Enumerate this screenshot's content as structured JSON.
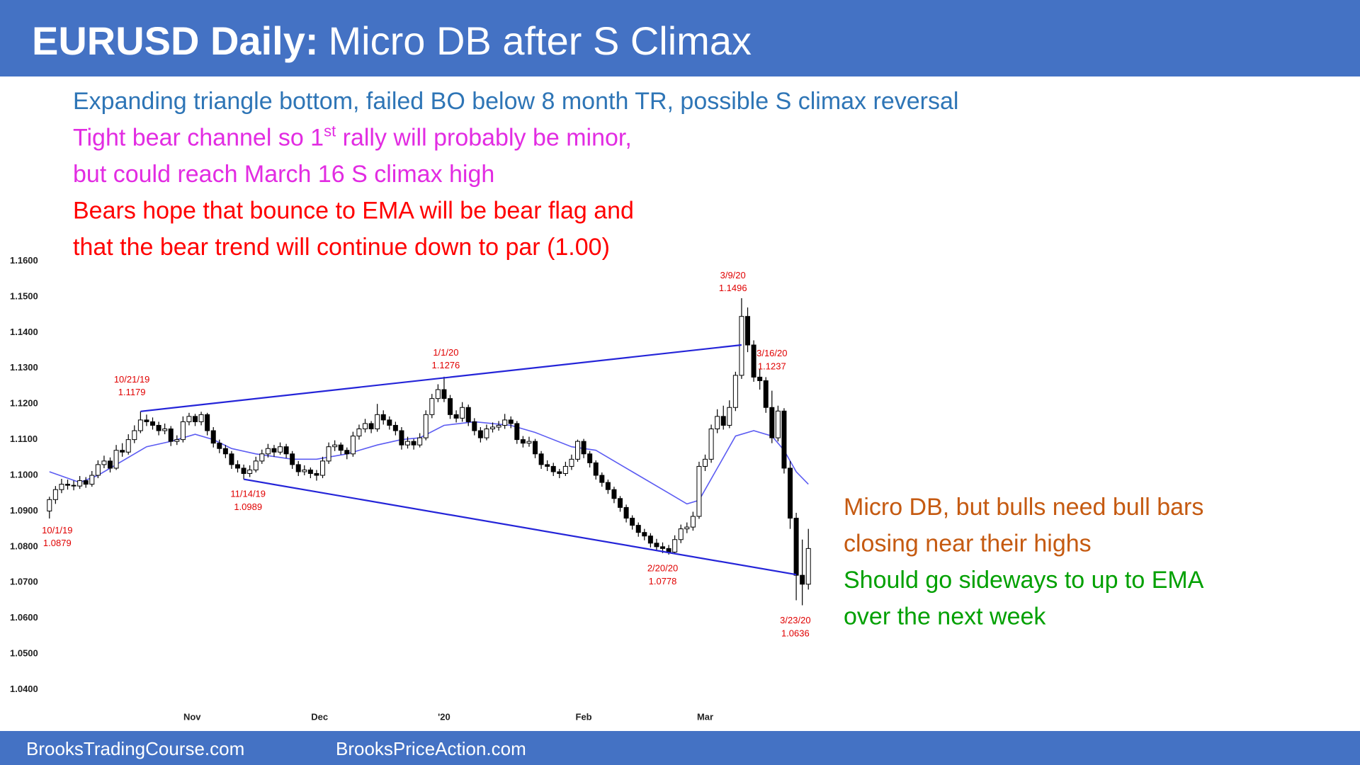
{
  "header": {
    "title_bold": "EURUSD Daily:",
    "title_rest": "Micro DB after S Climax"
  },
  "notes": [
    {
      "color": "#2E75B6",
      "runs": [
        "Expanding triangle bottom, failed BO below 8 month TR, possible S climax reversal"
      ]
    },
    {
      "color": "#E22CE2",
      "runs": [
        "Tight bear channel so 1",
        "st",
        " rally will probably be minor,"
      ]
    },
    {
      "color": "#E22CE2",
      "runs": [
        "but could reach March 16 S climax high"
      ]
    },
    {
      "color": "#FF0000",
      "runs": [
        "Bears hope that bounce to EMA will be bear flag and"
      ]
    },
    {
      "color": "#FF0000",
      "runs": [
        "that the bear trend will continue down to par (1.00)"
      ]
    }
  ],
  "commentary": [
    {
      "color": "#C55A11",
      "text": "Micro DB, but bulls need bull bars"
    },
    {
      "color": "#C55A11",
      "text": "closing near their highs"
    },
    {
      "color": "#00A000",
      "text": "Should go sideways to up to EMA"
    },
    {
      "color": "#00A000",
      "text": "over the next week"
    }
  ],
  "footer": {
    "left": "BrooksTradingCourse.com",
    "right": "BrooksPriceAction.com"
  },
  "chart_data": {
    "type": "candlestick",
    "xlim": [
      0,
      125
    ],
    "ylim": [
      1.04,
      1.16
    ],
    "yticks": [
      {
        "value": 1.04,
        "label": "1.0400"
      },
      {
        "value": 1.05,
        "label": "1.0500"
      },
      {
        "value": 1.06,
        "label": "1.0600"
      },
      {
        "value": 1.07,
        "label": "1.0700"
      },
      {
        "value": 1.08,
        "label": "1.0800"
      },
      {
        "value": 1.09,
        "label": "1.0900"
      },
      {
        "value": 1.1,
        "label": "1.1000"
      },
      {
        "value": 1.11,
        "label": "1.1100"
      },
      {
        "value": 1.12,
        "label": "1.1200"
      },
      {
        "value": 1.13,
        "label": "1.1300"
      },
      {
        "value": 1.14,
        "label": "1.1400"
      },
      {
        "value": 1.15,
        "label": "1.1500"
      },
      {
        "value": 1.16,
        "label": "1.1600"
      }
    ],
    "xticks": [
      {
        "value": 23.5,
        "label": "Nov"
      },
      {
        "value": 44.5,
        "label": "Dec"
      },
      {
        "value": 65,
        "label": "'20"
      },
      {
        "value": 88,
        "label": "Feb"
      },
      {
        "value": 108,
        "label": "Mar"
      }
    ],
    "bull_color": "#ffffff",
    "bear_color": "#000000",
    "ohlc": [
      [
        1.09,
        1.094,
        1.0879,
        1.0932
      ],
      [
        1.0932,
        1.097,
        1.092,
        1.096
      ],
      [
        1.096,
        1.099,
        1.095,
        1.0975
      ],
      [
        1.0975,
        1.0988,
        1.096,
        1.0972
      ],
      [
        1.0972,
        1.0985,
        1.0958,
        1.097
      ],
      [
        1.097,
        1.0998,
        1.0962,
        1.0985
      ],
      [
        1.0985,
        1.0995,
        1.0965,
        1.0975
      ],
      [
        1.0975,
        1.1012,
        1.0968,
        1.1
      ],
      [
        1.1,
        1.1042,
        1.0992,
        1.103
      ],
      [
        1.103,
        1.1055,
        1.102,
        1.104
      ],
      [
        1.104,
        1.105,
        1.1008,
        1.102
      ],
      [
        1.102,
        1.1085,
        1.1015,
        1.107
      ],
      [
        1.107,
        1.109,
        1.1052,
        1.1065
      ],
      [
        1.1065,
        1.1115,
        1.1058,
        1.11
      ],
      [
        1.11,
        1.114,
        1.109,
        1.1125
      ],
      [
        1.1125,
        1.1179,
        1.1118,
        1.1155
      ],
      [
        1.1155,
        1.117,
        1.1138,
        1.115
      ],
      [
        1.115,
        1.1162,
        1.1128,
        1.114
      ],
      [
        1.114,
        1.115,
        1.1112,
        1.1125
      ],
      [
        1.1125,
        1.1145,
        1.1115,
        1.113
      ],
      [
        1.113,
        1.1138,
        1.1082,
        1.1095
      ],
      [
        1.1095,
        1.1112,
        1.1085,
        1.11
      ],
      [
        1.11,
        1.1165,
        1.1092,
        1.115
      ],
      [
        1.115,
        1.1175,
        1.114,
        1.1165
      ],
      [
        1.1165,
        1.1172,
        1.1138,
        1.115
      ],
      [
        1.115,
        1.1178,
        1.114,
        1.117
      ],
      [
        1.117,
        1.1175,
        1.1112,
        1.1125
      ],
      [
        1.1125,
        1.1135,
        1.1078,
        1.109
      ],
      [
        1.109,
        1.11,
        1.1062,
        1.1075
      ],
      [
        1.1075,
        1.1085,
        1.1048,
        1.106
      ],
      [
        1.106,
        1.1068,
        1.1018,
        1.103
      ],
      [
        1.103,
        1.1042,
        1.1008,
        1.102
      ],
      [
        1.102,
        1.103,
        1.0989,
        1.1005
      ],
      [
        1.1005,
        1.1028,
        1.0995,
        1.1015
      ],
      [
        1.1015,
        1.1052,
        1.1008,
        1.104
      ],
      [
        1.104,
        1.1072,
        1.1032,
        1.106
      ],
      [
        1.106,
        1.1088,
        1.105,
        1.1075
      ],
      [
        1.1075,
        1.1085,
        1.1052,
        1.1065
      ],
      [
        1.1065,
        1.1092,
        1.1058,
        1.108
      ],
      [
        1.108,
        1.1088,
        1.1048,
        1.106
      ],
      [
        1.106,
        1.1068,
        1.1018,
        1.103
      ],
      [
        1.103,
        1.104,
        1.0998,
        1.101
      ],
      [
        1.101,
        1.1028,
        1.1,
        1.1015
      ],
      [
        1.1015,
        1.1022,
        1.0992,
        1.1005
      ],
      [
        1.1005,
        1.1015,
        1.0985,
        1.1
      ],
      [
        1.1,
        1.1052,
        1.0992,
        1.104
      ],
      [
        1.104,
        1.1092,
        1.1032,
        1.108
      ],
      [
        1.108,
        1.1098,
        1.1068,
        1.1085
      ],
      [
        1.1085,
        1.1092,
        1.1058,
        1.107
      ],
      [
        1.107,
        1.1078,
        1.1045,
        1.106
      ],
      [
        1.106,
        1.1122,
        1.1052,
        1.111
      ],
      [
        1.111,
        1.1142,
        1.11,
        1.113
      ],
      [
        1.113,
        1.1158,
        1.112,
        1.1145
      ],
      [
        1.1145,
        1.1152,
        1.1118,
        1.113
      ],
      [
        1.113,
        1.12,
        1.1122,
        1.117
      ],
      [
        1.117,
        1.1182,
        1.1142,
        1.1155
      ],
      [
        1.1155,
        1.1165,
        1.1128,
        1.114
      ],
      [
        1.114,
        1.115,
        1.1112,
        1.1125
      ],
      [
        1.1125,
        1.1135,
        1.1072,
        1.1085
      ],
      [
        1.1085,
        1.1108,
        1.1075,
        1.1095
      ],
      [
        1.1095,
        1.1102,
        1.1072,
        1.1085
      ],
      [
        1.1085,
        1.1118,
        1.1078,
        1.1105
      ],
      [
        1.1105,
        1.1182,
        1.1098,
        1.117
      ],
      [
        1.117,
        1.1228,
        1.116,
        1.1215
      ],
      [
        1.1215,
        1.1255,
        1.1205,
        1.124
      ],
      [
        1.124,
        1.1276,
        1.1205,
        1.1215
      ],
      [
        1.1215,
        1.1225,
        1.1158,
        1.117
      ],
      [
        1.117,
        1.1182,
        1.1148,
        1.116
      ],
      [
        1.116,
        1.1205,
        1.115,
        1.119
      ],
      [
        1.119,
        1.1198,
        1.1138,
        1.115
      ],
      [
        1.115,
        1.116,
        1.1112,
        1.1125
      ],
      [
        1.1125,
        1.1135,
        1.1092,
        1.1105
      ],
      [
        1.1105,
        1.1142,
        1.1098,
        1.113
      ],
      [
        1.113,
        1.1148,
        1.112,
        1.1135
      ],
      [
        1.1135,
        1.1152,
        1.1125,
        1.114
      ],
      [
        1.114,
        1.1172,
        1.113,
        1.1155
      ],
      [
        1.1155,
        1.1165,
        1.1132,
        1.1145
      ],
      [
        1.1145,
        1.1152,
        1.1088,
        1.11
      ],
      [
        1.11,
        1.111,
        1.1078,
        1.109
      ],
      [
        1.109,
        1.1108,
        1.108,
        1.1095
      ],
      [
        1.1095,
        1.1102,
        1.1048,
        1.106
      ],
      [
        1.106,
        1.1068,
        1.1018,
        1.103
      ],
      [
        1.103,
        1.1042,
        1.1012,
        1.1025
      ],
      [
        1.1025,
        1.1035,
        1.0998,
        1.101
      ],
      [
        1.101,
        1.1018,
        1.0992,
        1.1005
      ],
      [
        1.1005,
        1.1038,
        1.0998,
        1.1025
      ],
      [
        1.1025,
        1.1058,
        1.1015,
        1.1045
      ],
      [
        1.1045,
        1.11,
        1.1038,
        1.1095
      ],
      [
        1.1095,
        1.1102,
        1.1048,
        1.106
      ],
      [
        1.106,
        1.1068,
        1.1022,
        1.1035
      ],
      [
        1.1035,
        1.1042,
        1.0988,
        1.1
      ],
      [
        1.1,
        1.1008,
        1.0968,
        1.098
      ],
      [
        1.098,
        1.0988,
        1.0948,
        1.096
      ],
      [
        1.096,
        1.0968,
        1.0922,
        1.0935
      ],
      [
        1.0935,
        1.0942,
        1.0898,
        1.091
      ],
      [
        1.091,
        1.0918,
        1.0868,
        1.088
      ],
      [
        1.088,
        1.0888,
        1.0848,
        1.086
      ],
      [
        1.086,
        1.0868,
        1.0828,
        1.084
      ],
      [
        1.084,
        1.085,
        1.0818,
        1.083
      ],
      [
        1.083,
        1.0838,
        1.0798,
        1.081
      ],
      [
        1.081,
        1.0822,
        1.0788,
        1.08
      ],
      [
        1.08,
        1.0812,
        1.0782,
        1.0795
      ],
      [
        1.0795,
        1.0805,
        1.0778,
        1.0785
      ],
      [
        1.0785,
        1.0832,
        1.078,
        1.082
      ],
      [
        1.082,
        1.0862,
        1.081,
        1.085
      ],
      [
        1.085,
        1.0868,
        1.0838,
        1.0855
      ],
      [
        1.0855,
        1.0898,
        1.0845,
        1.0885
      ],
      [
        1.0885,
        1.1038,
        1.0878,
        1.1025
      ],
      [
        1.1025,
        1.1058,
        1.1012,
        1.1045
      ],
      [
        1.1045,
        1.1142,
        1.1035,
        1.113
      ],
      [
        1.113,
        1.1185,
        1.1118,
        1.1165
      ],
      [
        1.1165,
        1.1195,
        1.1128,
        1.114
      ],
      [
        1.114,
        1.121,
        1.1132,
        1.119
      ],
      [
        1.119,
        1.129,
        1.118,
        1.128
      ],
      [
        1.128,
        1.1496,
        1.127,
        1.1445
      ],
      [
        1.1445,
        1.147,
        1.1345,
        1.1365
      ],
      [
        1.1365,
        1.1378,
        1.1262,
        1.1275
      ],
      [
        1.1275,
        1.1298,
        1.124,
        1.1265
      ],
      [
        1.1265,
        1.1275,
        1.1175,
        1.119
      ],
      [
        1.119,
        1.1237,
        1.109,
        1.1105
      ],
      [
        1.1105,
        1.1195,
        1.1095,
        1.118
      ],
      [
        1.118,
        1.1188,
        1.1005,
        1.102
      ],
      [
        1.102,
        1.104,
        1.085,
        1.088
      ],
      [
        1.088,
        1.0895,
        1.065,
        1.072
      ],
      [
        1.072,
        1.082,
        1.0636,
        1.0695
      ],
      [
        1.0695,
        1.085,
        1.068,
        1.0795
      ]
    ],
    "ema": {
      "color": "#5C5CF2",
      "x": [
        0,
        5,
        8,
        13,
        16,
        20,
        24,
        27,
        30,
        34,
        40,
        44,
        49,
        54,
        58,
        61,
        65,
        70,
        76,
        80,
        86,
        90,
        96,
        102,
        105,
        107,
        110,
        113,
        116,
        119,
        121,
        123,
        125
      ],
      "values": [
        1.101,
        1.098,
        1.1,
        1.105,
        1.108,
        1.1095,
        1.1115,
        1.11,
        1.1075,
        1.106,
        1.1045,
        1.1045,
        1.106,
        1.1085,
        1.11,
        1.1105,
        1.114,
        1.115,
        1.114,
        1.112,
        1.108,
        1.107,
        1.101,
        1.095,
        1.092,
        1.093,
        1.102,
        1.111,
        1.1125,
        1.111,
        1.107,
        1.101,
        1.0975
      ]
    },
    "trendlines": [
      {
        "color": "#2424D8",
        "x": [
          15,
          114
        ],
        "values": [
          1.1179,
          1.1365
        ]
      },
      {
        "color": "#2424D8",
        "x": [
          32,
          123
        ],
        "values": [
          1.0989,
          1.0722
        ]
      }
    ],
    "annotations": [
      {
        "date": "10/1/19",
        "price": 1.0879
      },
      {
        "date": "10/21/19",
        "price": 1.1179
      },
      {
        "date": "11/14/19",
        "price": 1.0989
      },
      {
        "date": "1/1/20",
        "price": 1.1276
      },
      {
        "date": "2/20/20",
        "price": 1.0778
      },
      {
        "date": "3/9/20",
        "price": 1.1496
      },
      {
        "date": "3/16/20",
        "price": 1.1237
      },
      {
        "date": "3/23/20",
        "price": 1.0636
      }
    ]
  }
}
